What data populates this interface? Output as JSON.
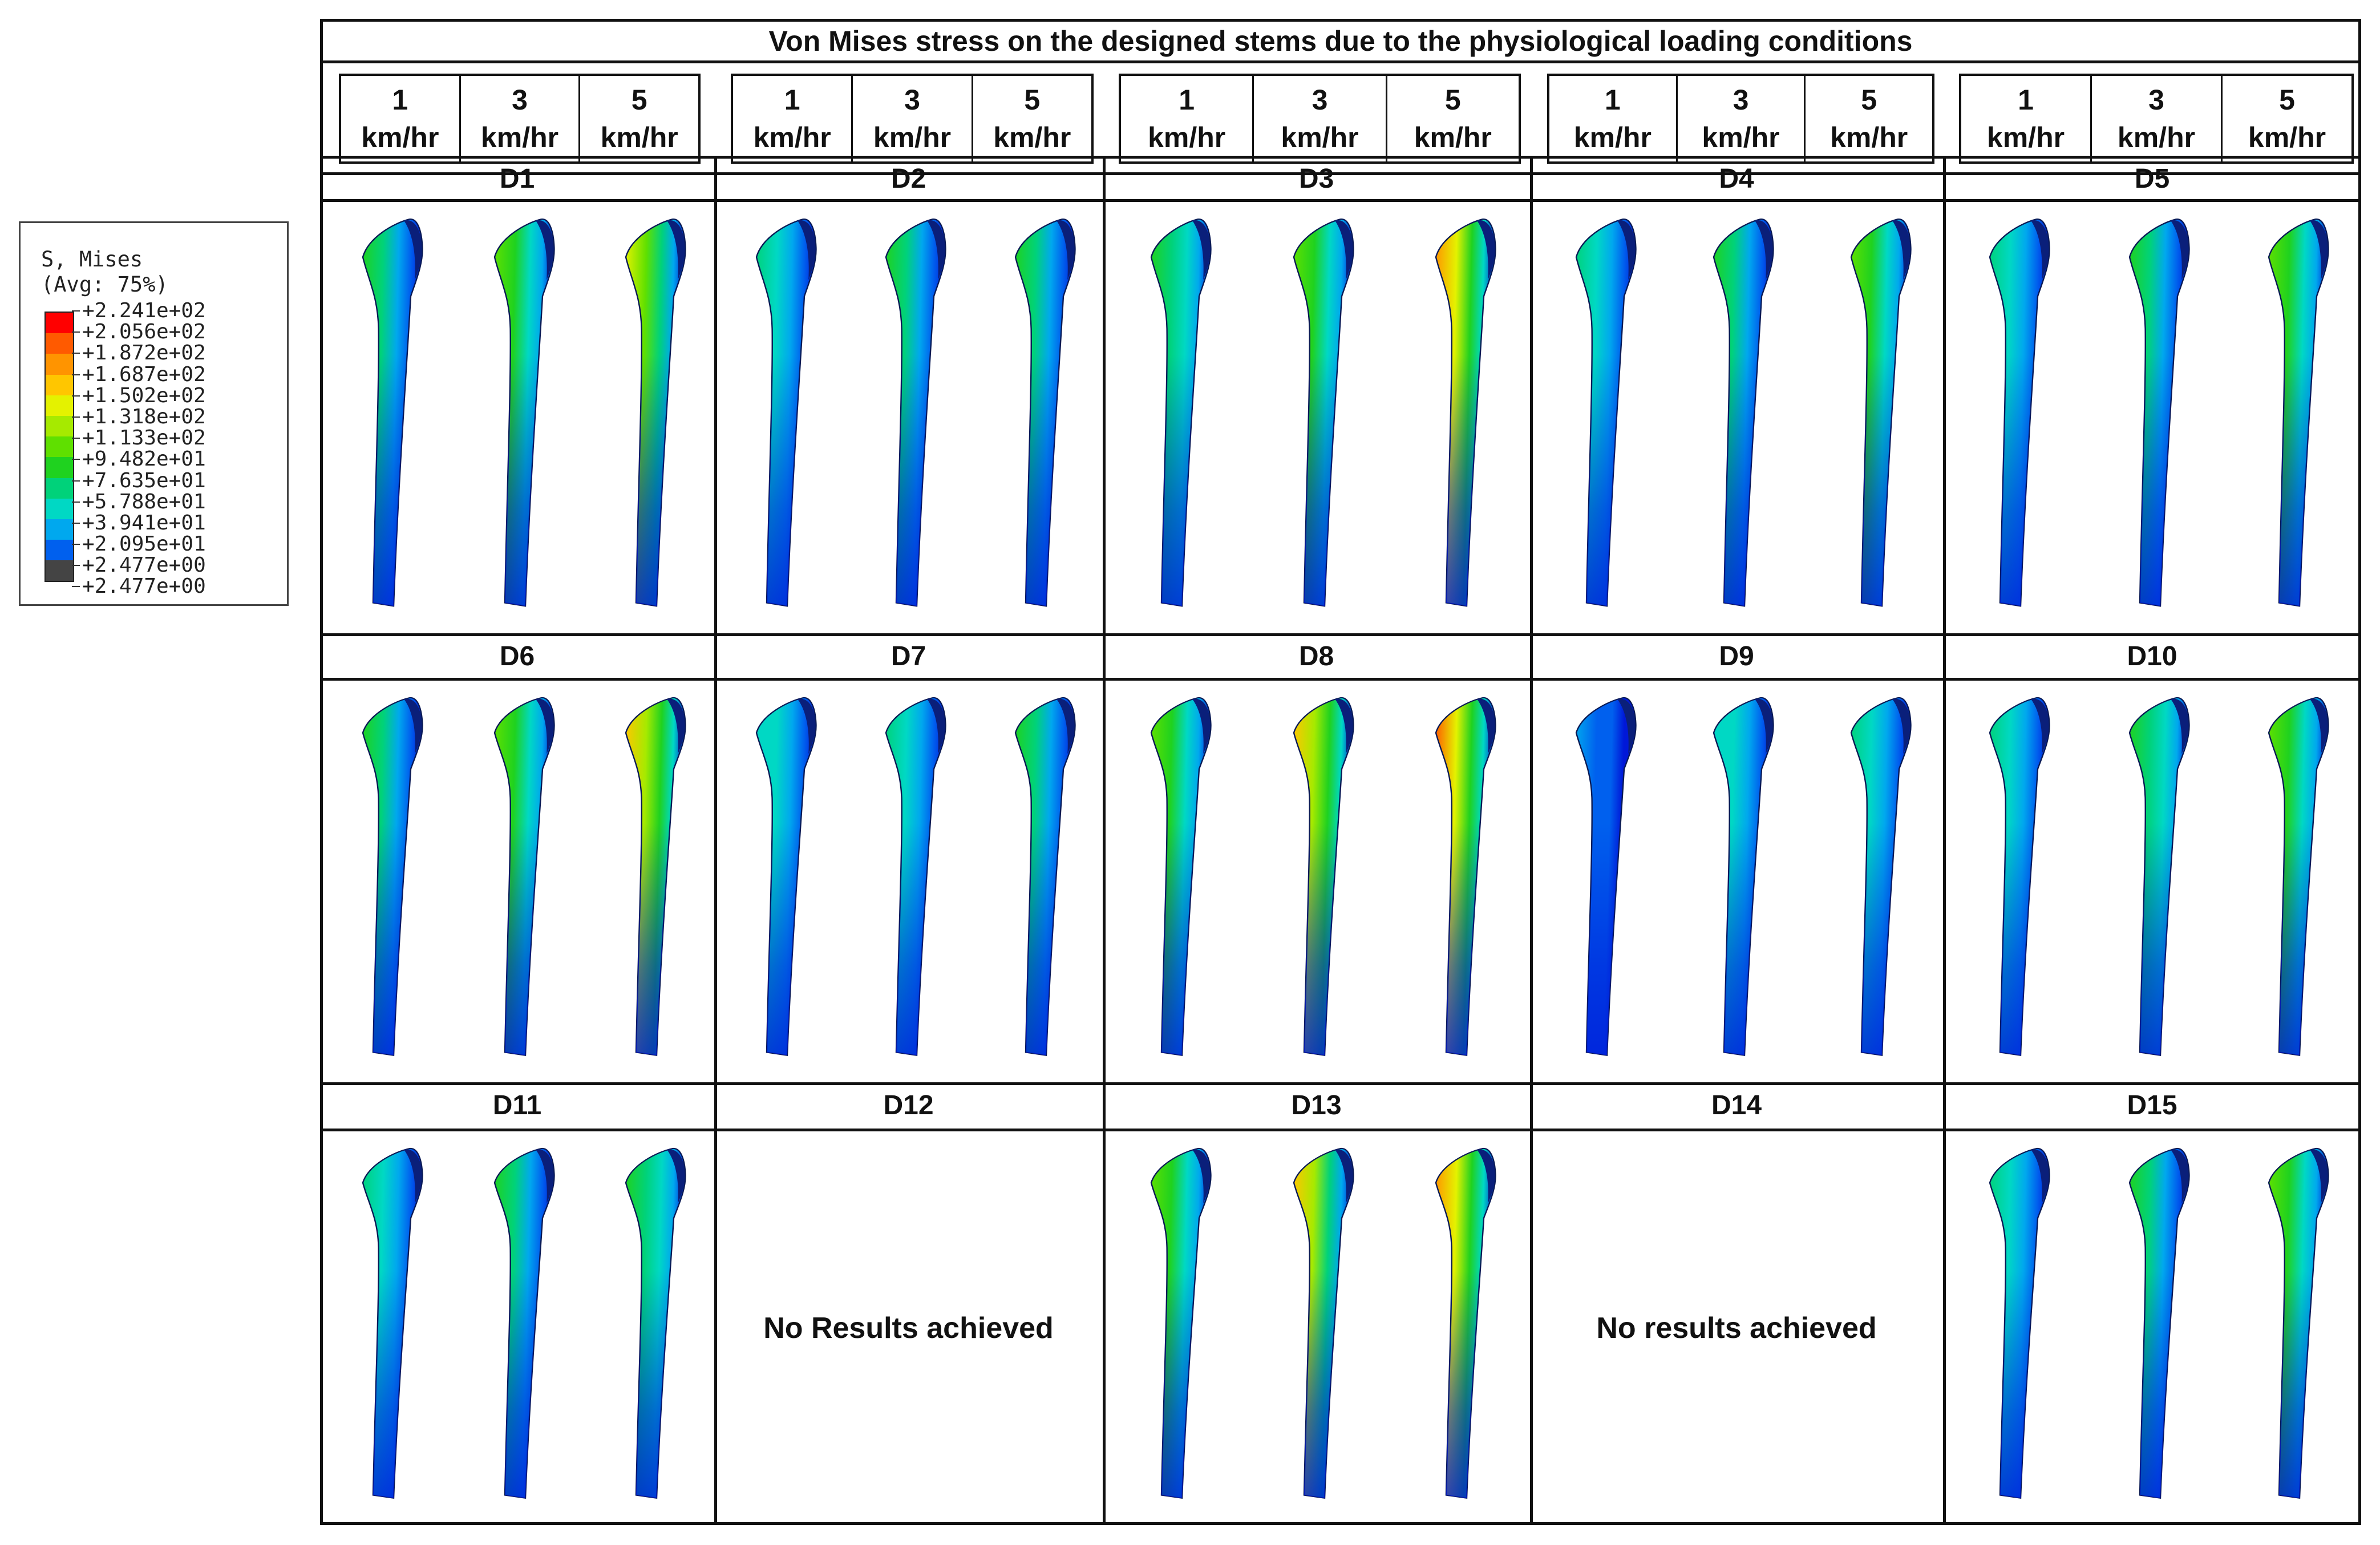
{
  "title": "Von Mises stress on the designed stems due to the physiological loading conditions",
  "speeds": [
    {
      "value": "1",
      "unit": "km/hr"
    },
    {
      "value": "3",
      "unit": "km/hr"
    },
    {
      "value": "5",
      "unit": "km/hr"
    }
  ],
  "legend": {
    "title_line1": "S, Mises",
    "title_line2": "(Avg: 75%)",
    "entries": [
      {
        "label": "+2.241e+02",
        "color": "#ff0000"
      },
      {
        "label": "+2.056e+02",
        "color": "#ff5a00"
      },
      {
        "label": "+1.872e+02",
        "color": "#ff9400"
      },
      {
        "label": "+1.687e+02",
        "color": "#ffc600"
      },
      {
        "label": "+1.502e+02",
        "color": "#e4f200"
      },
      {
        "label": "+1.318e+02",
        "color": "#a6ea00"
      },
      {
        "label": "+1.133e+02",
        "color": "#5fe000"
      },
      {
        "label": "+9.482e+01",
        "color": "#1fd21f"
      },
      {
        "label": "+7.635e+01",
        "color": "#00d27a"
      },
      {
        "label": "+5.788e+01",
        "color": "#00d8c4"
      },
      {
        "label": "+3.941e+01",
        "color": "#00a8ee"
      },
      {
        "label": "+2.095e+01",
        "color": "#0060ee"
      },
      {
        "label": "+2.477e+00",
        "color": "#0018d8"
      },
      {
        "label": "+2.477e+00",
        "color": "#444444"
      }
    ]
  },
  "designs": [
    {
      "label": "D1",
      "has_result": true,
      "stress_levels": [
        0.45,
        0.55,
        0.75
      ]
    },
    {
      "label": "D2",
      "has_result": true,
      "stress_levels": [
        0.35,
        0.42,
        0.45
      ]
    },
    {
      "label": "D3",
      "has_result": true,
      "stress_levels": [
        0.5,
        0.6,
        0.95
      ]
    },
    {
      "label": "D4",
      "has_result": true,
      "stress_levels": [
        0.35,
        0.45,
        0.55
      ]
    },
    {
      "label": "D5",
      "has_result": true,
      "stress_levels": [
        0.35,
        0.45,
        0.55
      ]
    },
    {
      "label": "D6",
      "has_result": true,
      "stress_levels": [
        0.45,
        0.55,
        0.85
      ]
    },
    {
      "label": "D7",
      "has_result": true,
      "stress_levels": [
        0.3,
        0.35,
        0.45
      ]
    },
    {
      "label": "D8",
      "has_result": true,
      "stress_levels": [
        0.6,
        0.85,
        1.0
      ]
    },
    {
      "label": "D9",
      "has_result": true,
      "stress_levels": [
        0.15,
        0.3,
        0.35
      ]
    },
    {
      "label": "D10",
      "has_result": true,
      "stress_levels": [
        0.4,
        0.5,
        0.6
      ]
    },
    {
      "label": "D11",
      "has_result": true,
      "stress_levels": [
        0.4,
        0.45,
        0.5
      ]
    },
    {
      "label": "D12",
      "has_result": false,
      "message": "No Results achieved"
    },
    {
      "label": "D13",
      "has_result": true,
      "stress_levels": [
        0.6,
        0.8,
        0.95
      ]
    },
    {
      "label": "D14",
      "has_result": false,
      "message": "No results achieved"
    },
    {
      "label": "D15",
      "has_result": true,
      "stress_levels": [
        0.35,
        0.45,
        0.55
      ]
    }
  ]
}
